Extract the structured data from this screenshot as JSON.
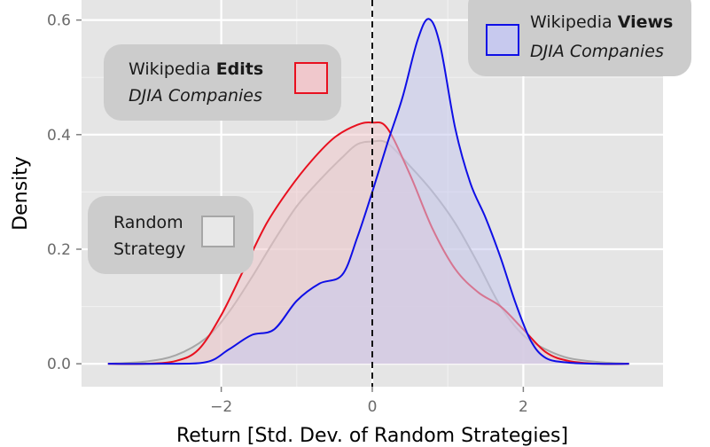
{
  "chart_data": {
    "type": "area",
    "xlabel": "Return [Std. Dev. of Random Strategies]",
    "ylabel": "Density",
    "xlim": [
      -3.85,
      3.85
    ],
    "ylim": [
      -0.04,
      0.635
    ],
    "x_ticks": [
      -2,
      0,
      2
    ],
    "x_tick_labels": [
      "−2",
      "0",
      "2"
    ],
    "y_ticks": [
      0.0,
      0.2,
      0.4,
      0.6
    ],
    "y_tick_labels": [
      "0.0",
      "0.2",
      "0.4",
      "0.6"
    ],
    "grid": true,
    "reference_line_x": 0,
    "series": [
      {
        "id": "random",
        "color": "#a6a6a6",
        "fill": "#d9d9d9",
        "points": [
          [
            -3.5,
            0.0
          ],
          [
            -3.0,
            0.004
          ],
          [
            -2.6,
            0.015
          ],
          [
            -2.2,
            0.045
          ],
          [
            -1.9,
            0.09
          ],
          [
            -1.6,
            0.15
          ],
          [
            -1.3,
            0.215
          ],
          [
            -1.0,
            0.275
          ],
          [
            -0.7,
            0.32
          ],
          [
            -0.4,
            0.36
          ],
          [
            -0.2,
            0.383
          ],
          [
            0.0,
            0.388
          ],
          [
            0.2,
            0.385
          ],
          [
            0.5,
            0.345
          ],
          [
            0.8,
            0.3
          ],
          [
            1.1,
            0.245
          ],
          [
            1.4,
            0.175
          ],
          [
            1.7,
            0.1
          ],
          [
            2.0,
            0.05
          ],
          [
            2.3,
            0.025
          ],
          [
            2.6,
            0.01
          ],
          [
            3.0,
            0.003
          ],
          [
            3.4,
            0.0
          ]
        ]
      },
      {
        "id": "edits",
        "color": "#e8101f",
        "fill": "#f0c8cc",
        "points": [
          [
            -3.5,
            0.0
          ],
          [
            -3.0,
            0.0
          ],
          [
            -2.6,
            0.005
          ],
          [
            -2.3,
            0.025
          ],
          [
            -2.0,
            0.085
          ],
          [
            -1.7,
            0.165
          ],
          [
            -1.4,
            0.245
          ],
          [
            -1.1,
            0.305
          ],
          [
            -0.8,
            0.355
          ],
          [
            -0.5,
            0.395
          ],
          [
            -0.2,
            0.417
          ],
          [
            0.0,
            0.421
          ],
          [
            0.2,
            0.411
          ],
          [
            0.5,
            0.33
          ],
          [
            0.8,
            0.235
          ],
          [
            1.1,
            0.165
          ],
          [
            1.4,
            0.125
          ],
          [
            1.7,
            0.1
          ],
          [
            2.0,
            0.06
          ],
          [
            2.3,
            0.02
          ],
          [
            2.6,
            0.005
          ],
          [
            3.0,
            0.0
          ],
          [
            3.4,
            0.0
          ]
        ]
      },
      {
        "id": "views",
        "color": "#0f0fe6",
        "fill": "#c7c9ee",
        "points": [
          [
            -3.5,
            0.0
          ],
          [
            -2.8,
            0.0
          ],
          [
            -2.2,
            0.003
          ],
          [
            -1.9,
            0.025
          ],
          [
            -1.6,
            0.05
          ],
          [
            -1.3,
            0.06
          ],
          [
            -1.0,
            0.11
          ],
          [
            -0.7,
            0.14
          ],
          [
            -0.4,
            0.155
          ],
          [
            -0.2,
            0.22
          ],
          [
            0.0,
            0.3
          ],
          [
            0.2,
            0.385
          ],
          [
            0.4,
            0.465
          ],
          [
            0.6,
            0.565
          ],
          [
            0.75,
            0.602
          ],
          [
            0.9,
            0.555
          ],
          [
            1.1,
            0.41
          ],
          [
            1.3,
            0.315
          ],
          [
            1.5,
            0.255
          ],
          [
            1.7,
            0.185
          ],
          [
            1.9,
            0.105
          ],
          [
            2.1,
            0.04
          ],
          [
            2.3,
            0.01
          ],
          [
            2.6,
            0.002
          ],
          [
            3.0,
            0.0
          ],
          [
            3.4,
            0.0
          ]
        ]
      }
    ]
  },
  "legends": {
    "views": {
      "prefix": "Wikipedia ",
      "bold": "Views",
      "subtitle": "DJIA Companies",
      "color": "#0f0fe6",
      "fill": "#c7c9ee"
    },
    "edits": {
      "prefix": "Wikipedia ",
      "bold": "Edits",
      "subtitle": "DJIA Companies",
      "color": "#e8101f",
      "fill": "#f0c8cc"
    },
    "random": {
      "line1": "Random",
      "line2": "Strategy",
      "color": "#a6a6a6",
      "fill": "#e8e8e8"
    }
  }
}
